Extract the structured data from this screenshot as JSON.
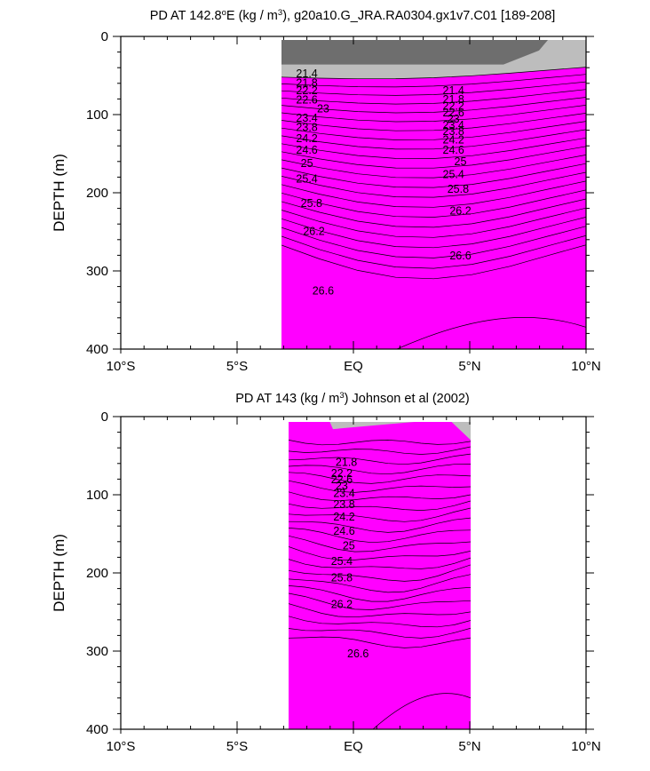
{
  "chart_data": [
    {
      "type": "contour",
      "id": "top",
      "title_parts": [
        "PD AT 142.8",
        "o",
        "E (kg / m",
        "3",
        "), g20a10.G_JRA.RA0304.gx1v7.C01 [189-208]"
      ],
      "ylabel": "DEPTH (m)",
      "xlim": [
        -10,
        10
      ],
      "ylim": [
        0,
        400
      ],
      "data_lon_range": [
        -3,
        10
      ],
      "x_ticks": [
        {
          "v": -10,
          "label": "10°S"
        },
        {
          "v": -5,
          "label": "5°S"
        },
        {
          "v": 0,
          "label": "EQ"
        },
        {
          "v": 5,
          "label": "5°N"
        },
        {
          "v": 10,
          "label": "10°N"
        }
      ],
      "y_ticks": [
        {
          "v": 0,
          "label": "0"
        },
        {
          "v": 100,
          "label": "100"
        },
        {
          "v": 200,
          "label": "200"
        },
        {
          "v": 300,
          "label": "300"
        },
        {
          "v": 400,
          "label": "400"
        }
      ],
      "contour_labels": [
        "21.4",
        "21.8",
        "22.2",
        "22.6",
        "23",
        "23.4",
        "23.8",
        "24.2",
        "24.6",
        "25",
        "25.4",
        "25.8",
        "26.2",
        "26.6"
      ],
      "label_positions": [
        {
          "text": "21.4",
          "lon": -2.0,
          "depth": 52
        },
        {
          "text": "21.8",
          "lon": -2.0,
          "depth": 64
        },
        {
          "text": "22.2",
          "lon": -2.0,
          "depth": 74
        },
        {
          "text": "22.6",
          "lon": -2.0,
          "depth": 86
        },
        {
          "text": "23",
          "lon": -1.3,
          "depth": 97
        },
        {
          "text": "23.4",
          "lon": -2.0,
          "depth": 109
        },
        {
          "text": "23.8",
          "lon": -2.0,
          "depth": 121
        },
        {
          "text": "24.2",
          "lon": -2.0,
          "depth": 135
        },
        {
          "text": "24.6",
          "lon": -2.0,
          "depth": 150
        },
        {
          "text": "25",
          "lon": -2.0,
          "depth": 167
        },
        {
          "text": "25.4",
          "lon": -2.0,
          "depth": 187
        },
        {
          "text": "25.8",
          "lon": -1.8,
          "depth": 218
        },
        {
          "text": "26.2",
          "lon": -1.7,
          "depth": 254
        },
        {
          "text": "26.6",
          "lon": -1.3,
          "depth": 330
        },
        {
          "text": "21.4",
          "lon": 4.3,
          "depth": 74
        },
        {
          "text": "21.8",
          "lon": 4.3,
          "depth": 85
        },
        {
          "text": "22.2",
          "lon": 4.3,
          "depth": 94
        },
        {
          "text": "22.6",
          "lon": 4.3,
          "depth": 102
        },
        {
          "text": "23",
          "lon": 4.3,
          "depth": 110
        },
        {
          "text": "23.4",
          "lon": 4.3,
          "depth": 118
        },
        {
          "text": "23.8",
          "lon": 4.3,
          "depth": 126
        },
        {
          "text": "24.2",
          "lon": 4.3,
          "depth": 137
        },
        {
          "text": "24.6",
          "lon": 4.3,
          "depth": 150
        },
        {
          "text": "25",
          "lon": 4.6,
          "depth": 165
        },
        {
          "text": "25.4",
          "lon": 4.3,
          "depth": 181
        },
        {
          "text": "25.8",
          "lon": 4.5,
          "depth": 200
        },
        {
          "text": "26.2",
          "lon": 4.6,
          "depth": 228
        },
        {
          "text": "26.6",
          "lon": 4.6,
          "depth": 285
        }
      ]
    },
    {
      "type": "contour",
      "id": "bottom",
      "title_parts": [
        "PD AT 143 (kg / m",
        "3",
        ") Johnson et al (2002)"
      ],
      "ylabel": "DEPTH (m)",
      "xlim": [
        -10,
        10
      ],
      "ylim": [
        0,
        400
      ],
      "data_lon_range": [
        -2.8,
        5
      ],
      "x_ticks": [
        {
          "v": -10,
          "label": "10°S"
        },
        {
          "v": -5,
          "label": "5°S"
        },
        {
          "v": 0,
          "label": "EQ"
        },
        {
          "v": 5,
          "label": "5°N"
        },
        {
          "v": 10,
          "label": "10°N"
        }
      ],
      "y_ticks": [
        {
          "v": 0,
          "label": "0"
        },
        {
          "v": 100,
          "label": "100"
        },
        {
          "v": 200,
          "label": "200"
        },
        {
          "v": 300,
          "label": "300"
        },
        {
          "v": 400,
          "label": "400"
        }
      ],
      "contour_labels": [
        "21.8",
        "22.2",
        "22.6",
        "23",
        "23.4",
        "23.8",
        "24.2",
        "24.6",
        "25",
        "25.4",
        "25.8",
        "26.2",
        "26.6"
      ],
      "label_positions": [
        {
          "text": "21.8",
          "lon": -0.3,
          "depth": 63
        },
        {
          "text": "22.2",
          "lon": -0.5,
          "depth": 77
        },
        {
          "text": "22.6",
          "lon": -0.5,
          "depth": 85
        },
        {
          "text": "23",
          "lon": -0.5,
          "depth": 93
        },
        {
          "text": "23.4",
          "lon": -0.4,
          "depth": 103
        },
        {
          "text": "23.8",
          "lon": -0.4,
          "depth": 117
        },
        {
          "text": "24.2",
          "lon": -0.4,
          "depth": 133
        },
        {
          "text": "24.6",
          "lon": -0.4,
          "depth": 151
        },
        {
          "text": "25",
          "lon": -0.2,
          "depth": 170
        },
        {
          "text": "25.4",
          "lon": -0.5,
          "depth": 190
        },
        {
          "text": "25.8",
          "lon": -0.5,
          "depth": 211
        },
        {
          "text": "26.2",
          "lon": -0.5,
          "depth": 245
        },
        {
          "text": "26.6",
          "lon": 0.2,
          "depth": 308
        }
      ]
    }
  ],
  "colors": {
    "land": "#6e6e6e",
    "above_min": "#bdbdbd",
    "levels": [
      "#ff00ff",
      "#dd00ff",
      "#aa00ff",
      "#7700ff",
      "#1e3cff",
      "#0096ff",
      "#00c8ff",
      "#00e6c8",
      "#00dc82",
      "#00d200",
      "#96e600",
      "#e6f000",
      "#ffdc00",
      "#ffa800",
      "#ff8c00",
      "#ff6e00",
      "#ff3c00",
      "#f01e00",
      "#dc0000",
      "#c80000"
    ]
  }
}
